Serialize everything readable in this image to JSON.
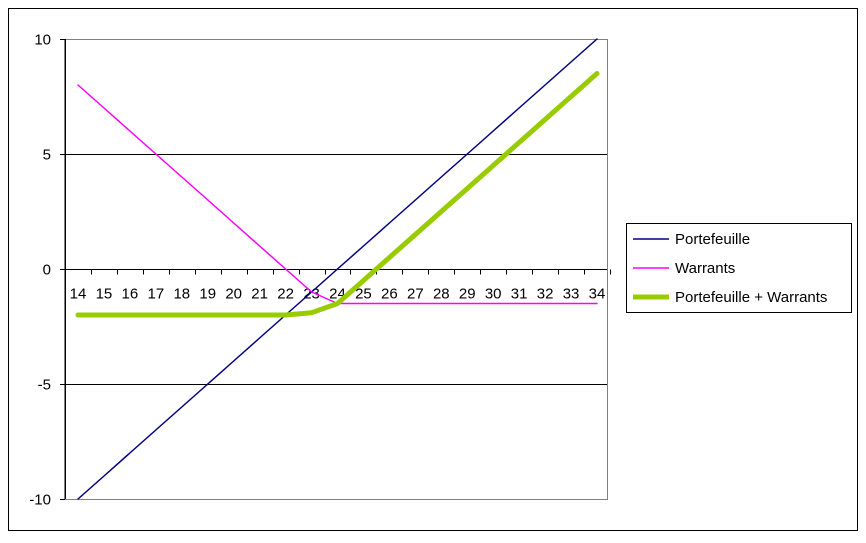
{
  "chart_data": {
    "type": "line",
    "x": [
      14,
      15,
      16,
      17,
      18,
      19,
      20,
      21,
      22,
      23,
      24,
      25,
      26,
      27,
      28,
      29,
      30,
      31,
      32,
      33,
      34
    ],
    "x_tick_labels": [
      "14",
      "15",
      "16",
      "17",
      "18",
      "19",
      "20",
      "21",
      "22",
      "23",
      "24",
      "25",
      "26",
      "27",
      "28",
      "29",
      "30",
      "31",
      "32",
      "33",
      "34"
    ],
    "y_tick_labels": [
      "10",
      "5",
      "0",
      "-5",
      "-10"
    ],
    "y_ticks": [
      10,
      5,
      0,
      -5,
      -10
    ],
    "ylim": [
      -10,
      10
    ],
    "xlim": [
      14,
      34
    ],
    "grid": {
      "horizontal": true,
      "vertical": false
    },
    "legend_position": "right",
    "series": [
      {
        "name": "Portefeuille",
        "color": "#000080",
        "values": [
          -10,
          -9,
          -8,
          -7,
          -6,
          -5,
          -4,
          -3,
          -2,
          -1,
          0,
          1,
          2,
          3,
          4,
          5,
          6,
          7,
          8,
          9,
          10
        ]
      },
      {
        "name": "Warrants",
        "color": "#ff00ff",
        "values": [
          8,
          7,
          6,
          5,
          4,
          3,
          2,
          1,
          0,
          -1,
          -1.5,
          -1.5,
          -1.5,
          -1.5,
          -1.5,
          -1.5,
          -1.5,
          -1.5,
          -1.5,
          -1.5,
          -1.5
        ]
      },
      {
        "name": "Portefeuille + Warrants",
        "color": "#99cc00",
        "values": [
          -2,
          -2,
          -2,
          -2,
          -2,
          -2,
          -2,
          -2,
          -2,
          -1.9,
          -1.5,
          -0.5,
          0.5,
          1.5,
          2.5,
          3.5,
          4.5,
          5.5,
          6.5,
          7.5,
          8.5
        ]
      }
    ]
  }
}
